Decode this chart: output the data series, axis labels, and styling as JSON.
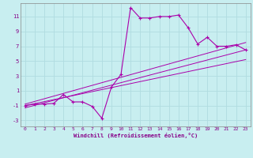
{
  "xlabel": "Windchill (Refroidissement éolien,°C)",
  "bg_color": "#c8eef0",
  "grid_color": "#b0dce0",
  "line_color": "#aa00aa",
  "xlim": [
    -0.5,
    23.5
  ],
  "ylim": [
    -3.8,
    12.8
  ],
  "xticks": [
    0,
    1,
    2,
    3,
    4,
    5,
    6,
    7,
    8,
    9,
    10,
    11,
    12,
    13,
    14,
    15,
    16,
    17,
    18,
    19,
    20,
    21,
    22,
    23
  ],
  "yticks": [
    -3,
    -1,
    1,
    3,
    5,
    7,
    9,
    11
  ],
  "main_x": [
    0,
    1,
    2,
    3,
    4,
    5,
    6,
    7,
    8,
    9,
    10,
    11,
    12,
    13,
    14,
    15,
    16,
    17,
    18,
    19,
    20,
    21,
    22,
    23
  ],
  "main_y": [
    -1.0,
    -0.8,
    -0.8,
    -0.7,
    0.5,
    -0.5,
    -0.5,
    -1.1,
    -2.7,
    1.5,
    3.2,
    12.2,
    10.8,
    10.8,
    11.0,
    11.0,
    11.2,
    9.5,
    7.3,
    8.2,
    7.0,
    7.0,
    7.2,
    6.5
  ],
  "line1_x": [
    0,
    23
  ],
  "line1_y": [
    -1.3,
    6.5
  ],
  "line2_x": [
    0,
    23
  ],
  "line2_y": [
    -1.0,
    5.2
  ],
  "line3_x": [
    0,
    23
  ],
  "line3_y": [
    -0.8,
    7.5
  ]
}
